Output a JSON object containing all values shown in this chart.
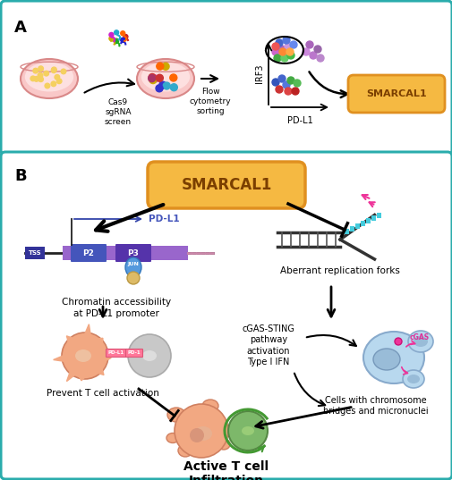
{
  "panel_A_label": "A",
  "panel_B_label": "B",
  "smarcal1_text": "SMARCAL1",
  "smarcal1_color": "#F5B942",
  "smarcal1_text_color": "#7B3F00",
  "smarcal1_border_color": "#E09020",
  "panel_border_color": "#2AACAC",
  "background_color": "#FFFFFF",
  "cas9_text": "Cas9\nsgRNA\nscreen",
  "flow_text": "Flow\ncytometry\nsorting",
  "pdl1_label": "PD-L1",
  "irf3_label": "IRF3",
  "chromatin_text": "Chromatin accessibility\nat PD-L1 promoter",
  "aberrant_text": "Aberrant replication forks",
  "cgas_sting_text": "cGAS-STING\npathway\nactivation",
  "type_ifn_text": "Type I IFN",
  "prevent_text": "Prevent T cell activation",
  "chromosome_text": "Cells with chromosome\nbridges and micronuclei",
  "active_t_text": "Active T cell\nInfiltration",
  "dish_fill": "#F9C8C8",
  "dish_edge": "#D98888",
  "cell_salmon_color": "#F2A882",
  "cell_gray_color": "#C8C8C8",
  "cell_green_color": "#7DB86A",
  "cell_light_blue": "#A8C8E8",
  "arrow_color": "#222222",
  "cgas_color": "#DD3399"
}
